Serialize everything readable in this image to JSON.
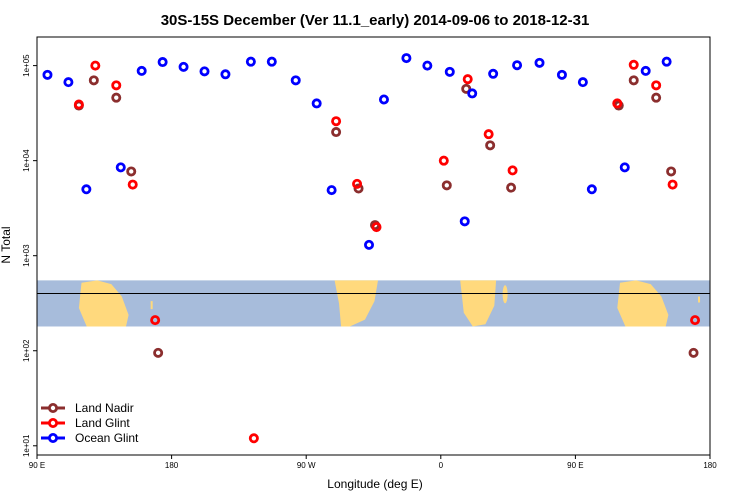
{
  "chart_data": {
    "type": "scatter",
    "title": "30S-15S December (Ver 11.1_early)   2014-09-06 to 2018-12-31",
    "xlabel": "Longitude (deg E)",
    "ylabel": "N Total",
    "x_axis": {
      "min": 90,
      "max": 540,
      "ticks": [
        90,
        180,
        270,
        360,
        450,
        540
      ],
      "tick_labels": [
        "90 E",
        "180",
        "90 W",
        "0",
        "90 E",
        "180"
      ]
    },
    "y_axis": {
      "scale": "log",
      "min": 8,
      "max": 200000,
      "ticks": [
        10,
        100,
        1000,
        10000,
        100000
      ],
      "tick_labels": [
        "1e+01",
        "1e+02",
        "1e+03",
        "1e+04",
        "1e+05"
      ]
    },
    "map_band": {
      "y_low": 180,
      "y_high": 550,
      "horizontal_line": 400,
      "ocean_color": "#A7BCDB",
      "land_color": "#FFD97D"
    },
    "legend": {
      "position": "bottom-left",
      "entries": [
        "Land Nadir",
        "Land Glint",
        "Ocean Glint"
      ]
    },
    "series": [
      {
        "name": "Land Nadir",
        "color": "#8B2E2E",
        "points": [
          [
            118,
            38000
          ],
          [
            128,
            70000
          ],
          [
            143,
            46000
          ],
          [
            153,
            7700
          ],
          [
            171,
            95
          ],
          [
            290,
            20000
          ],
          [
            305,
            5100
          ],
          [
            316,
            2100
          ],
          [
            364,
            5500
          ],
          [
            377,
            57000
          ],
          [
            393,
            14500
          ],
          [
            407,
            5200
          ],
          [
            479,
            38000
          ],
          [
            489,
            70000
          ],
          [
            504,
            46000
          ],
          [
            514,
            7700
          ],
          [
            529,
            95
          ]
        ]
      },
      {
        "name": "Land Glint",
        "color": "#FF0000",
        "points": [
          [
            118,
            39000
          ],
          [
            129,
            100000
          ],
          [
            143,
            62000
          ],
          [
            154,
            5600
          ],
          [
            169,
            210
          ],
          [
            235,
            12
          ],
          [
            290,
            26000
          ],
          [
            304,
            5700
          ],
          [
            317,
            2000
          ],
          [
            362,
            10000
          ],
          [
            378,
            72000
          ],
          [
            392,
            19000
          ],
          [
            408,
            7900
          ],
          [
            478,
            40000
          ],
          [
            489,
            102000
          ],
          [
            504,
            62000
          ],
          [
            515,
            5600
          ],
          [
            530,
            210
          ]
        ]
      },
      {
        "name": "Ocean Glint",
        "color": "#0000FF",
        "points": [
          [
            97,
            80000
          ],
          [
            111,
            67000
          ],
          [
            123,
            5000
          ],
          [
            146,
            8500
          ],
          [
            160,
            88000
          ],
          [
            174,
            109000
          ],
          [
            188,
            97000
          ],
          [
            202,
            87000
          ],
          [
            216,
            81000
          ],
          [
            233,
            110000
          ],
          [
            247,
            110000
          ],
          [
            263,
            70000
          ],
          [
            277,
            40000
          ],
          [
            287,
            4900
          ],
          [
            312,
            1300
          ],
          [
            322,
            44000
          ],
          [
            337,
            120000
          ],
          [
            351,
            100000
          ],
          [
            366,
            86000
          ],
          [
            376,
            2300
          ],
          [
            381,
            51000
          ],
          [
            395,
            82000
          ],
          [
            411,
            101000
          ],
          [
            426,
            107000
          ],
          [
            441,
            80000
          ],
          [
            455,
            67000
          ],
          [
            461,
            5000
          ],
          [
            483,
            8500
          ],
          [
            497,
            88000
          ],
          [
            511,
            110000
          ]
        ]
      }
    ]
  }
}
